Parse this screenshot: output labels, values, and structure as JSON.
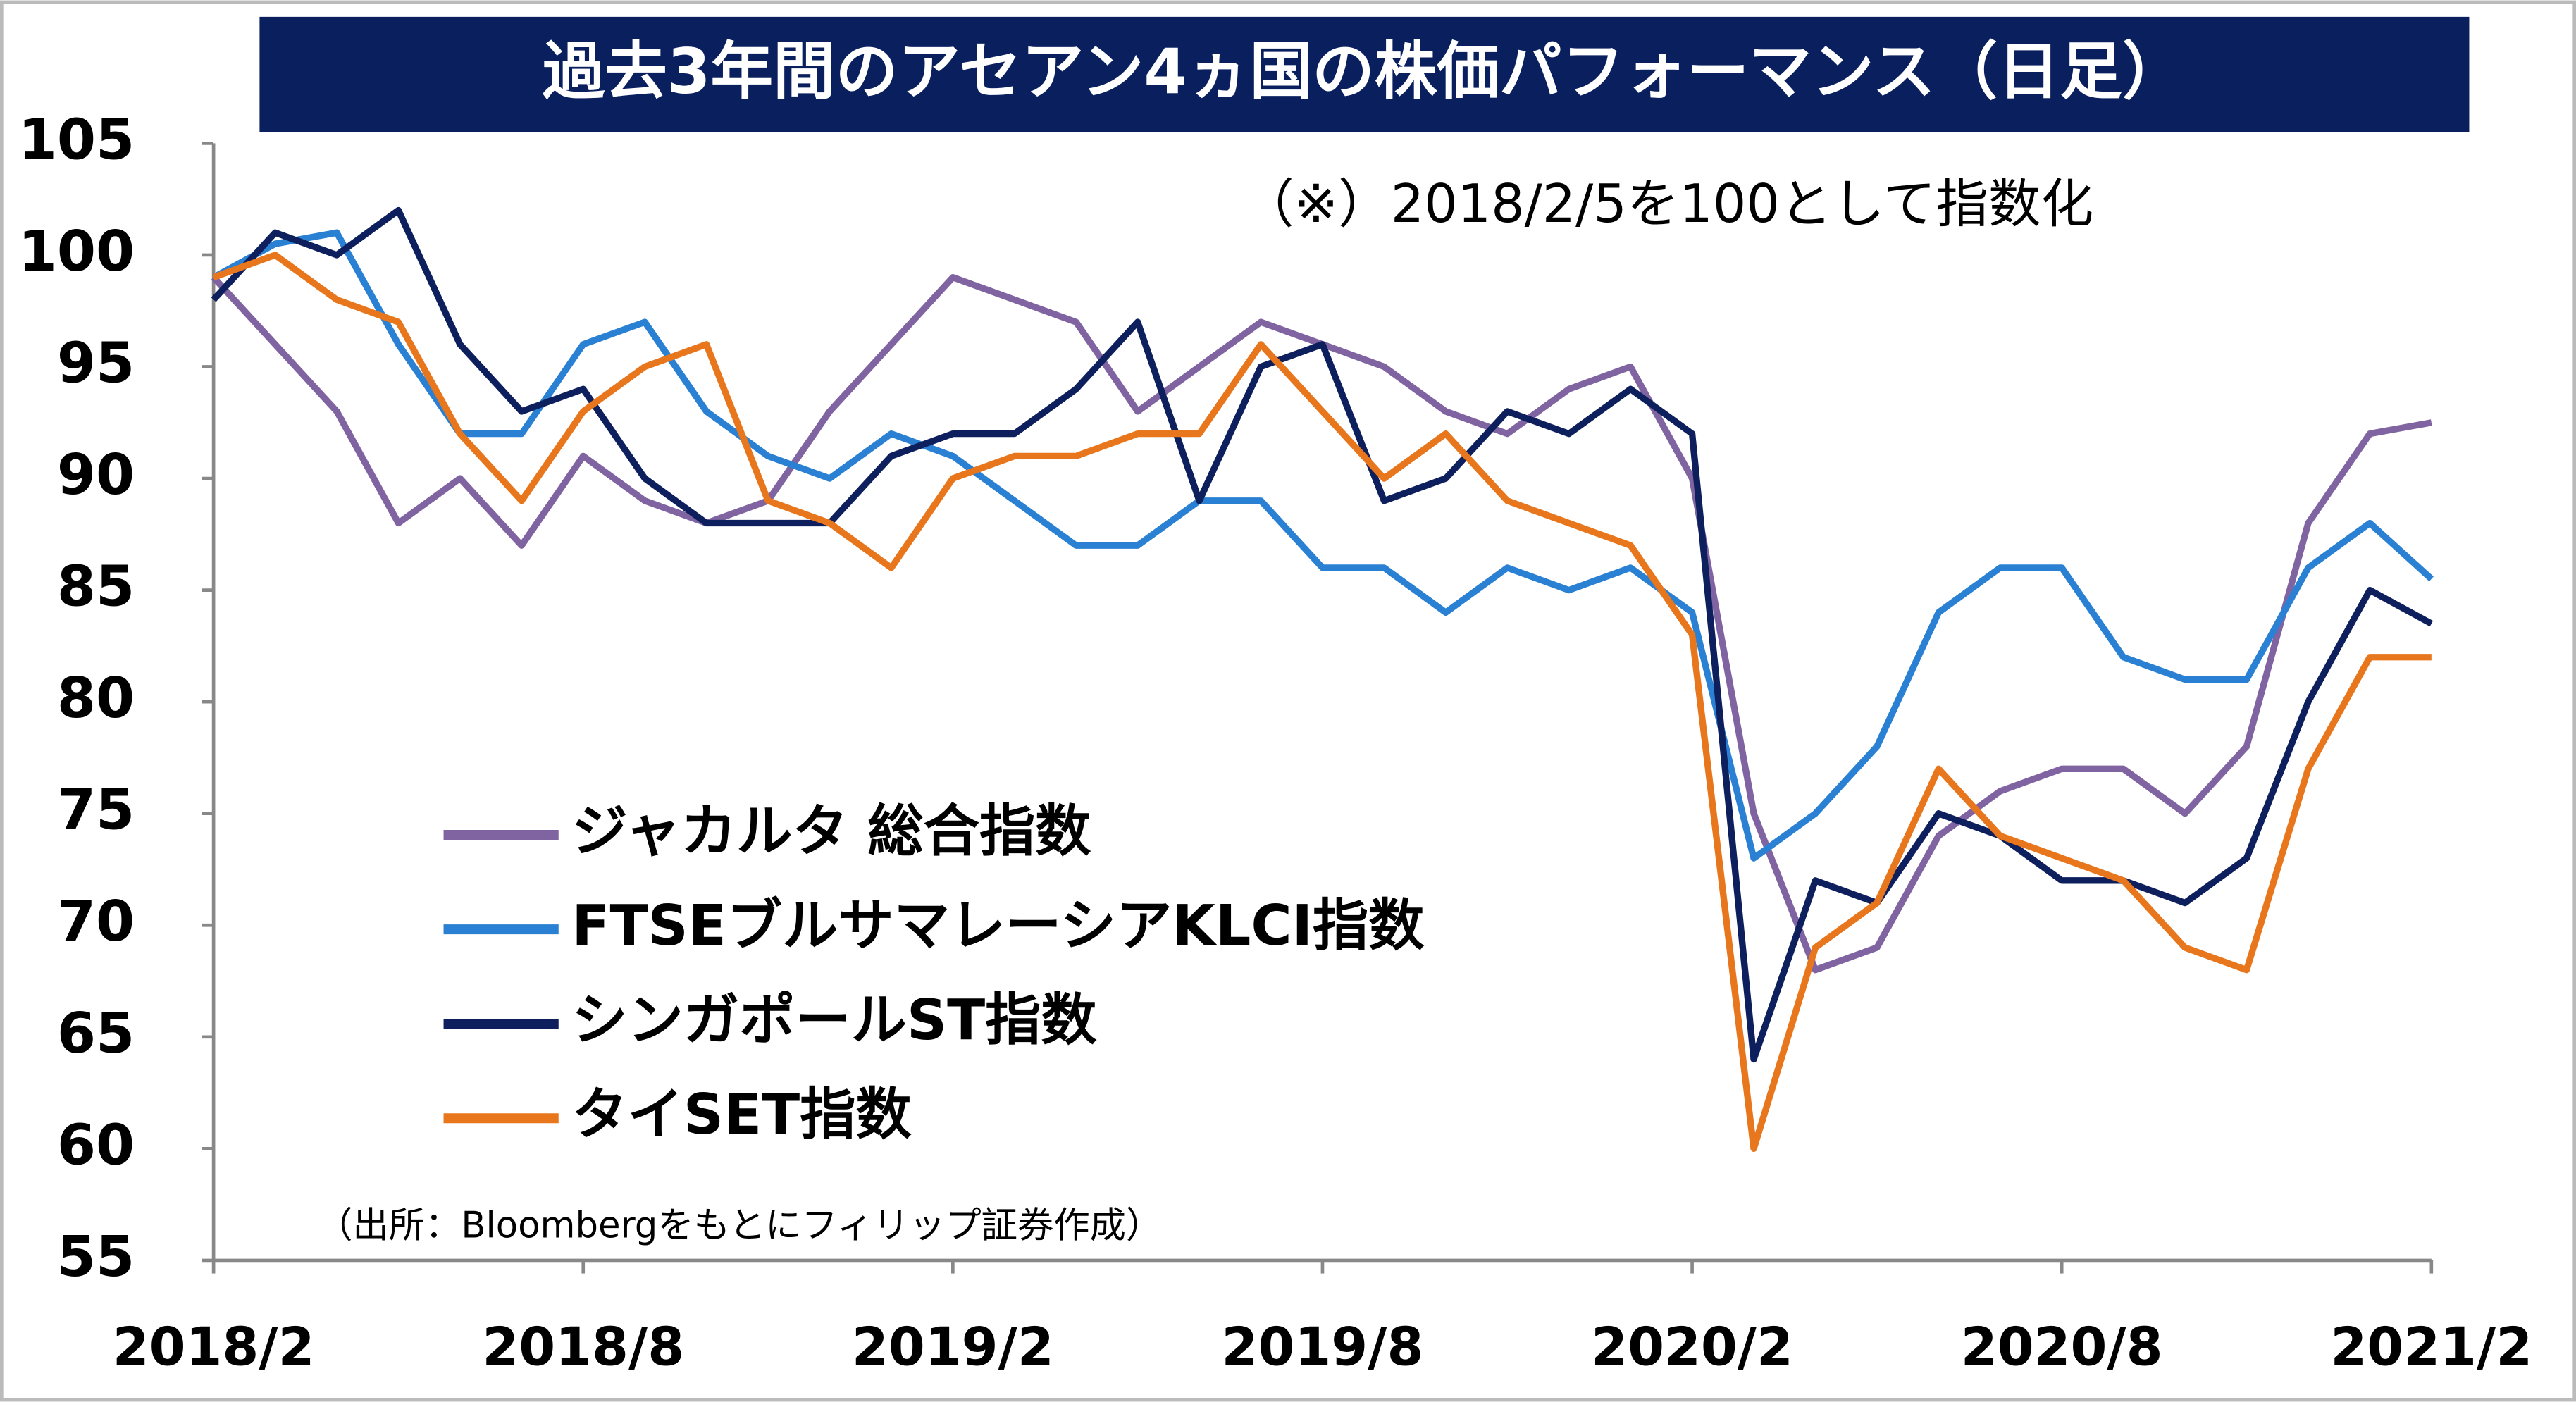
{
  "chart_data": {
    "type": "line",
    "title": "過去3年間のアセアン4ヵ国の株価パフォーマンス（日足）",
    "annotation": "（※）2018/2/5を100として指数化",
    "source": "（出所：Bloombergをもとにフィリップ証券作成）",
    "categories": [
      "2018/2",
      null,
      null,
      null,
      null,
      null,
      "2018/8",
      null,
      null,
      null,
      null,
      null,
      "2019/2",
      null,
      null,
      null,
      null,
      null,
      "2019/8",
      null,
      null,
      null,
      null,
      null,
      "2020/2",
      null,
      null,
      null,
      null,
      null,
      "2020/8",
      null,
      null,
      null,
      null,
      null,
      "2021/2"
    ],
    "series": [
      {
        "name": "ジャカルタ 総合指数",
        "color": "#8064a2",
        "values": [
          99,
          96,
          93,
          88,
          90,
          87,
          91,
          89,
          88,
          89,
          93,
          96,
          99,
          98,
          97,
          93,
          95,
          97,
          96,
          95,
          93,
          92,
          94,
          95,
          90,
          75,
          68,
          69,
          74,
          76,
          77,
          77,
          75,
          78,
          88,
          92,
          92.5
        ]
      },
      {
        "name": "FTSEブルサマレーシアKLCI指数",
        "color": "#2a80d2",
        "values": [
          99,
          100.5,
          101,
          96,
          92,
          92,
          96,
          97,
          93,
          91,
          90,
          92,
          91,
          89,
          87,
          87,
          89,
          89,
          86,
          86,
          84,
          86,
          85,
          86,
          84,
          73,
          75,
          78,
          84,
          86,
          86,
          82,
          81,
          81,
          86,
          88,
          85.5
        ]
      },
      {
        "name": "シンガポールST指数",
        "color": "#0d1f5c",
        "values": [
          98,
          101,
          100,
          102,
          96,
          93,
          94,
          90,
          88,
          88,
          88,
          91,
          92,
          92,
          94,
          97,
          89,
          95,
          96,
          89,
          90,
          93,
          92,
          94,
          92,
          64,
          72,
          71,
          75,
          74,
          72,
          72,
          71,
          73,
          80,
          85,
          83.5
        ]
      },
      {
        "name": "タイSET指数",
        "color": "#e8761c",
        "values": [
          99,
          100,
          98,
          97,
          92,
          89,
          93,
          95,
          96,
          89,
          88,
          86,
          90,
          91,
          91,
          92,
          92,
          96,
          93,
          90,
          92,
          89,
          88,
          87,
          83,
          60,
          69,
          71,
          77,
          74,
          73,
          72,
          69,
          68,
          77,
          82,
          82
        ]
      }
    ],
    "ylim": [
      55,
      105
    ],
    "yticks": [
      55,
      60,
      65,
      70,
      75,
      80,
      85,
      90,
      95,
      100,
      105
    ],
    "grid": false
  }
}
